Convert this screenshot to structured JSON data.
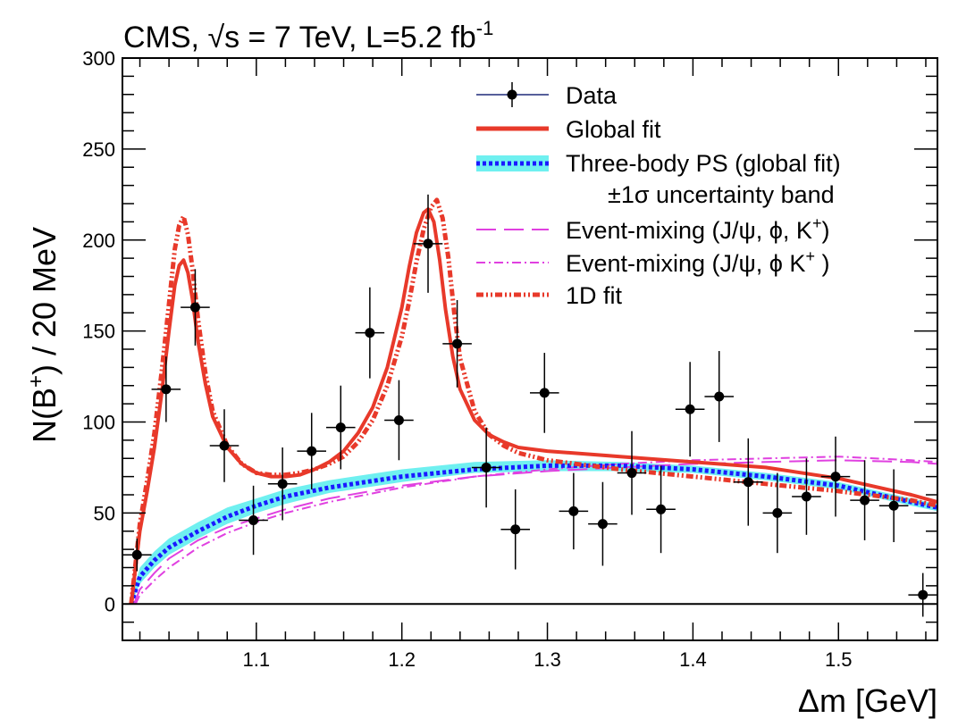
{
  "chart_data": {
    "type": "scatter",
    "title": "CMS, √s = 7 TeV, L=5.2 fb",
    "title_superscript": "-1",
    "xlabel": "Δm [GeV]",
    "ylabel": "N(B",
    "ylabel_sup": "+",
    "ylabel_tail": ") / 20 MeV",
    "xlim": [
      1.008,
      1.568
    ],
    "ylim": [
      -20,
      300
    ],
    "x_ticks": [
      {
        "value": 1.1,
        "label": "1.1"
      },
      {
        "value": 1.2,
        "label": "1.2"
      },
      {
        "value": 1.3,
        "label": "1.3"
      },
      {
        "value": 1.4,
        "label": "1.4"
      },
      {
        "value": 1.5,
        "label": "1.5"
      }
    ],
    "y_ticks": [
      {
        "value": 0,
        "label": "0"
      },
      {
        "value": 50,
        "label": "50"
      },
      {
        "value": 100,
        "label": "100"
      },
      {
        "value": 150,
        "label": "150"
      },
      {
        "value": 200,
        "label": "200"
      },
      {
        "value": 250,
        "label": "250"
      },
      {
        "value": 300,
        "label": "300"
      }
    ],
    "grid": false,
    "legend_position": "top-right",
    "legend": [
      {
        "key": "data",
        "label": "Data"
      },
      {
        "key": "global",
        "label": "Global fit"
      },
      {
        "key": "ps",
        "label": "Three-body PS (global fit)"
      },
      {
        "key": "band",
        "label": "±1σ  uncertainty band"
      },
      {
        "key": "mix1",
        "label": "Event-mixing (J/ψ, ϕ, K"
      },
      {
        "key": "mix2",
        "label": "Event-mixing (J/ψ, ϕ K"
      },
      {
        "key": "fit1d",
        "label": "1D fit"
      }
    ],
    "legend_sup": "+",
    "legend_tail1": ")",
    "legend_tail2": " )",
    "colors": {
      "data": "#000000",
      "global": "#e8392a",
      "ps_line": "#1a1aff",
      "band": "#6ff0f0",
      "mix": "#e040e0",
      "fit1d": "#e8392a",
      "data_legend_line": "#1f2a7a"
    },
    "data_points": {
      "x": [
        1.018,
        1.038,
        1.058,
        1.078,
        1.098,
        1.118,
        1.138,
        1.158,
        1.178,
        1.198,
        1.218,
        1.238,
        1.258,
        1.278,
        1.298,
        1.318,
        1.338,
        1.358,
        1.378,
        1.398,
        1.418,
        1.438,
        1.458,
        1.478,
        1.498,
        1.518,
        1.538,
        1.558
      ],
      "y": [
        27,
        118,
        163,
        87,
        46,
        66,
        84,
        97,
        149,
        101,
        198,
        143,
        75,
        41,
        116,
        51,
        44,
        72,
        52,
        107,
        114,
        67,
        50,
        59,
        70,
        57,
        54,
        5
      ],
      "err": [
        9,
        18,
        21,
        20,
        19,
        20,
        21,
        23,
        25,
        22,
        27,
        24,
        22,
        22,
        22,
        21,
        23,
        23,
        24,
        26,
        25,
        24,
        22,
        21,
        22,
        22,
        20,
        12
      ],
      "xerr": 0.01
    },
    "series": [
      {
        "key": "band_upper",
        "x": [
          1.014,
          1.02,
          1.03,
          1.04,
          1.06,
          1.08,
          1.1,
          1.12,
          1.15,
          1.2,
          1.25,
          1.3,
          1.35,
          1.4,
          1.45,
          1.5,
          1.55,
          1.568
        ],
        "y": [
          3,
          20,
          29,
          36,
          45,
          53,
          58,
          63,
          68,
          74,
          78,
          79,
          78,
          76,
          72,
          67,
          58,
          55
        ]
      },
      {
        "key": "band_lower",
        "x": [
          1.014,
          1.02,
          1.03,
          1.04,
          1.06,
          1.08,
          1.1,
          1.12,
          1.15,
          1.2,
          1.25,
          1.3,
          1.35,
          1.4,
          1.45,
          1.5,
          1.55,
          1.568
        ],
        "y": [
          0,
          11,
          20,
          27,
          36,
          44,
          50,
          55,
          61,
          67,
          72,
          73,
          73,
          72,
          68,
          63,
          54,
          51
        ]
      },
      {
        "key": "ps",
        "x": [
          1.014,
          1.02,
          1.03,
          1.04,
          1.06,
          1.08,
          1.1,
          1.12,
          1.15,
          1.2,
          1.25,
          1.3,
          1.35,
          1.4,
          1.45,
          1.5,
          1.55,
          1.568
        ],
        "y": [
          0,
          15,
          24,
          31,
          40,
          48,
          54,
          59,
          64,
          70,
          74,
          76,
          76,
          74,
          70,
          65,
          56,
          53
        ]
      },
      {
        "key": "global",
        "x": [
          1.014,
          1.02,
          1.025,
          1.03,
          1.035,
          1.04,
          1.044,
          1.047,
          1.05,
          1.053,
          1.056,
          1.06,
          1.065,
          1.07,
          1.08,
          1.09,
          1.1,
          1.11,
          1.12,
          1.13,
          1.14,
          1.15,
          1.16,
          1.17,
          1.18,
          1.19,
          1.2,
          1.205,
          1.21,
          1.215,
          1.218,
          1.222,
          1.226,
          1.23,
          1.235,
          1.24,
          1.25,
          1.26,
          1.27,
          1.28,
          1.3,
          1.35,
          1.4,
          1.45,
          1.5,
          1.55,
          1.568
        ],
        "y": [
          0,
          40,
          62,
          86,
          116,
          150,
          175,
          186,
          189,
          182,
          168,
          144,
          121,
          103,
          86,
          77,
          72,
          70,
          70,
          71,
          74,
          78,
          84,
          94,
          108,
          130,
          163,
          185,
          204,
          215,
          217,
          210,
          189,
          162,
          136,
          118,
          101,
          93,
          89,
          86,
          84,
          81,
          78,
          75,
          69,
          60,
          56
        ]
      },
      {
        "key": "fit1d",
        "x": [
          1.014,
          1.02,
          1.025,
          1.03,
          1.035,
          1.04,
          1.044,
          1.047,
          1.05,
          1.053,
          1.056,
          1.06,
          1.065,
          1.07,
          1.08,
          1.09,
          1.1,
          1.11,
          1.12,
          1.13,
          1.14,
          1.15,
          1.16,
          1.17,
          1.18,
          1.19,
          1.2,
          1.205,
          1.21,
          1.215,
          1.22,
          1.224,
          1.228,
          1.232,
          1.236,
          1.24,
          1.25,
          1.26,
          1.27,
          1.28,
          1.3,
          1.35,
          1.4,
          1.45,
          1.5,
          1.55,
          1.568
        ],
        "y": [
          0,
          44,
          68,
          94,
          128,
          165,
          195,
          208,
          213,
          203,
          185,
          156,
          127,
          106,
          87,
          77,
          72,
          71,
          71,
          72,
          74,
          77,
          81,
          89,
          101,
          120,
          147,
          166,
          188,
          206,
          218,
          222,
          212,
          190,
          160,
          135,
          106,
          93,
          87,
          83,
          79,
          74,
          70,
          66,
          62,
          57,
          54
        ]
      },
      {
        "key": "mix1",
        "x": [
          1.016,
          1.02,
          1.03,
          1.04,
          1.06,
          1.08,
          1.1,
          1.12,
          1.15,
          1.2,
          1.25,
          1.3,
          1.35,
          1.4,
          1.45,
          1.5,
          1.55,
          1.568
        ],
        "y": [
          0,
          8,
          17,
          25,
          35,
          42,
          47,
          52,
          58,
          65,
          70,
          73,
          75,
          77,
          78,
          79,
          78,
          77
        ]
      },
      {
        "key": "mix2",
        "x": [
          1.017,
          1.02,
          1.03,
          1.04,
          1.06,
          1.08,
          1.1,
          1.12,
          1.15,
          1.2,
          1.25,
          1.3,
          1.35,
          1.4,
          1.45,
          1.5,
          1.55,
          1.568
        ],
        "y": [
          0,
          5,
          13,
          20,
          31,
          39,
          45,
          50,
          56,
          64,
          70,
          74,
          77,
          79,
          80,
          81,
          79,
          78
        ]
      }
    ]
  }
}
